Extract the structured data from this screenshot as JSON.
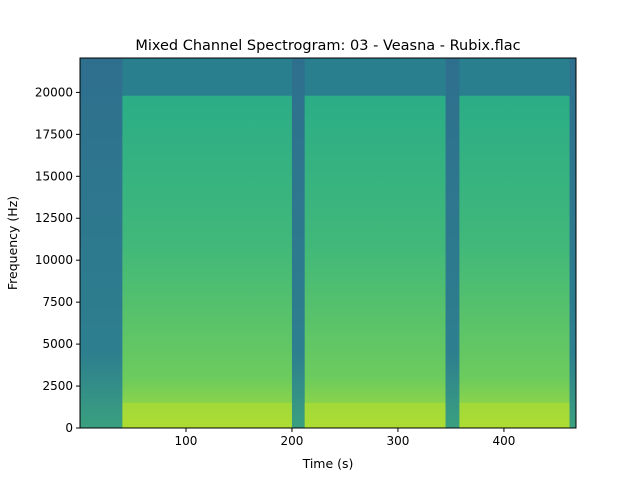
{
  "chart_data": {
    "type": "heatmap",
    "title": "Mixed Channel Spectrogram: 03 - Veasna - Rubix.flac",
    "xlabel": "Time (s)",
    "ylabel": "Frequency (Hz)",
    "xlim": [
      0,
      468
    ],
    "ylim": [
      0,
      22050
    ],
    "x_ticks": [
      100,
      200,
      300,
      400
    ],
    "y_ticks": [
      0,
      2500,
      5000,
      7500,
      10000,
      12500,
      15000,
      17500,
      20000
    ],
    "colormap": "viridis",
    "low_color": "#2d7f8e",
    "high_color": "#a6db3a",
    "segments": [
      {
        "start": 0,
        "end": 40,
        "level": 0.35
      },
      {
        "start": 40,
        "end": 200,
        "level": 0.72
      },
      {
        "start": 200,
        "end": 212,
        "level": 0.38
      },
      {
        "start": 212,
        "end": 345,
        "level": 0.74
      },
      {
        "start": 345,
        "end": 358,
        "level": 0.36
      },
      {
        "start": 358,
        "end": 462,
        "level": 0.72
      },
      {
        "start": 462,
        "end": 468,
        "level": 0.4
      }
    ],
    "upper_cutoff_hz": 19800
  }
}
